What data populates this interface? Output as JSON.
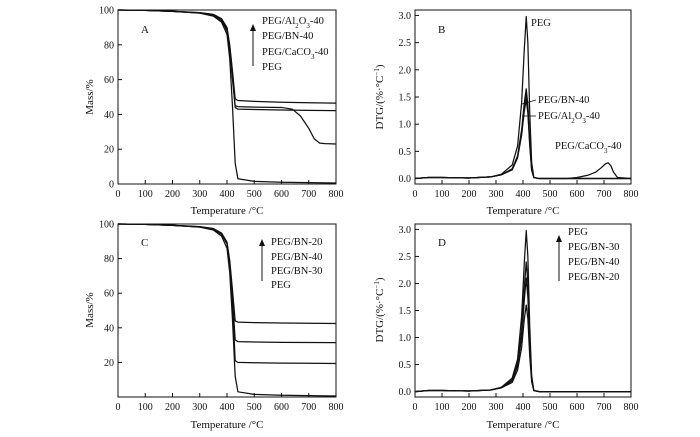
{
  "figure_colors": {
    "line": "#111111",
    "background": "#ffffff"
  },
  "chart_data": [
    {
      "id": "A",
      "type": "line",
      "panel_label": "A",
      "xlabel": "Temperature /°C",
      "ylabel": "Mass/%",
      "xlim": [
        0,
        800
      ],
      "ylim": [
        0,
        100
      ],
      "xticks": [
        "0",
        "100",
        "200",
        "300",
        "400",
        "500",
        "600",
        "700",
        "800"
      ],
      "yticks": [
        "0",
        "20",
        "40",
        "60",
        "80",
        "100"
      ],
      "legend": {
        "order": [
          "PEG/Al2O3-40",
          "PEG/BN-40",
          "PEG/CaCO3-40",
          "PEG"
        ],
        "position": "top-right",
        "arrow": "up"
      },
      "series": [
        {
          "name": "PEG/Al2O3-40",
          "x": [
            0,
            100,
            200,
            300,
            350,
            380,
            400,
            410,
            420,
            430,
            440,
            500,
            600,
            700,
            800
          ],
          "y": [
            100,
            99.8,
            99.3,
            98.5,
            97.5,
            95,
            90,
            80,
            65,
            49,
            48,
            47.5,
            47,
            46.7,
            46.5
          ]
        },
        {
          "name": "PEG/BN-40",
          "x": [
            0,
            100,
            200,
            300,
            350,
            380,
            400,
            410,
            420,
            430,
            440,
            500,
            600,
            700,
            800
          ],
          "y": [
            100,
            99.8,
            99.2,
            98.4,
            97.3,
            94.5,
            89,
            79,
            64,
            44,
            43,
            42.8,
            42.5,
            42.3,
            42.2
          ]
        },
        {
          "name": "PEG/CaCO3-40",
          "x": [
            0,
            100,
            200,
            300,
            350,
            380,
            400,
            410,
            420,
            430,
            440,
            500,
            600,
            640,
            670,
            700,
            720,
            740,
            760,
            800
          ],
          "y": [
            100,
            99.8,
            99.2,
            98.3,
            97,
            94,
            88,
            77,
            60,
            45,
            44.5,
            44.2,
            44,
            43,
            39,
            32,
            26,
            23.5,
            23.2,
            23
          ]
        },
        {
          "name": "PEG",
          "x": [
            0,
            100,
            200,
            300,
            350,
            380,
            400,
            410,
            420,
            430,
            440,
            500,
            600,
            700,
            800
          ],
          "y": [
            100,
            99.8,
            99.2,
            98.2,
            96.5,
            93,
            86,
            72,
            45,
            12,
            3,
            1.5,
            1,
            0.8,
            0.6
          ]
        }
      ]
    },
    {
      "id": "B",
      "type": "line",
      "panel_label": "B",
      "xlabel": "Temperature /°C",
      "ylabel": "DTG/(%·°C⁻¹)",
      "xlim": [
        0,
        800
      ],
      "ylim": [
        -0.1,
        3.1
      ],
      "xticks": [
        "0",
        "100",
        "200",
        "300",
        "400",
        "500",
        "600",
        "700",
        "800"
      ],
      "yticks": [
        "0.0",
        "0.5",
        "1.0",
        "1.5",
        "2.0",
        "2.5",
        "3.0"
      ],
      "annotations": [
        "PEG",
        "PEG/BN-40",
        "PEG/Al2O3-40",
        "PEG/CaCO3-40"
      ],
      "series": [
        {
          "name": "PEG",
          "x": [
            0,
            50,
            100,
            200,
            280,
            320,
            360,
            380,
            395,
            405,
            412,
            418,
            425,
            432,
            440,
            460,
            600,
            800
          ],
          "y": [
            0.0,
            0.02,
            0.02,
            0.01,
            0.03,
            0.08,
            0.25,
            0.6,
            1.4,
            2.4,
            2.98,
            2.5,
            1.2,
            0.3,
            0.02,
            0.0,
            0.0,
            0.0
          ]
        },
        {
          "name": "PEG/BN-40",
          "x": [
            0,
            50,
            100,
            200,
            280,
            320,
            360,
            380,
            395,
            405,
            412,
            418,
            425,
            432,
            440,
            460,
            600,
            800
          ],
          "y": [
            0.0,
            0.02,
            0.02,
            0.01,
            0.03,
            0.07,
            0.18,
            0.42,
            0.9,
            1.4,
            1.65,
            1.35,
            0.7,
            0.2,
            0.02,
            0.0,
            0.0,
            0.0
          ]
        },
        {
          "name": "PEG/Al2O3-40",
          "x": [
            0,
            50,
            100,
            200,
            280,
            320,
            360,
            380,
            395,
            405,
            412,
            418,
            425,
            432,
            440,
            460,
            600,
            800
          ],
          "y": [
            0.0,
            0.02,
            0.02,
            0.01,
            0.03,
            0.07,
            0.17,
            0.4,
            0.85,
            1.3,
            1.55,
            1.3,
            0.65,
            0.18,
            0.02,
            0.0,
            0.0,
            0.0
          ]
        },
        {
          "name": "PEG/CaCO3-40",
          "x": [
            0,
            50,
            100,
            200,
            280,
            320,
            360,
            380,
            395,
            405,
            412,
            418,
            425,
            432,
            440,
            460,
            560,
            600,
            640,
            670,
            690,
            705,
            715,
            725,
            735,
            750,
            800
          ],
          "y": [
            0.0,
            0.02,
            0.02,
            0.01,
            0.03,
            0.07,
            0.16,
            0.38,
            0.8,
            1.25,
            1.45,
            1.2,
            0.6,
            0.15,
            0.02,
            0.0,
            0.0,
            0.02,
            0.06,
            0.12,
            0.2,
            0.27,
            0.29,
            0.24,
            0.12,
            0.02,
            0.0
          ]
        }
      ]
    },
    {
      "id": "C",
      "type": "line",
      "panel_label": "C",
      "xlabel": "Temperature /°C",
      "ylabel": "Mass/%",
      "xlim": [
        0,
        800
      ],
      "ylim": [
        0,
        100
      ],
      "xticks": [
        "0",
        "100",
        "200",
        "300",
        "400",
        "500",
        "600",
        "700",
        "800"
      ],
      "yticks": [
        "20",
        "40",
        "60",
        "80",
        "100"
      ],
      "legend": {
        "order": [
          "PEG/BN-20",
          "PEG/BN-40",
          "PEG/BN-30",
          "PEG"
        ],
        "position": "top-right",
        "arrow": "up"
      },
      "series": [
        {
          "name": "PEG/BN-40",
          "x": [
            0,
            100,
            200,
            300,
            350,
            380,
            400,
            410,
            420,
            430,
            440,
            500,
            600,
            700,
            800
          ],
          "y": [
            100,
            99.8,
            99.3,
            98.5,
            97.4,
            94.8,
            89.5,
            79,
            62,
            44,
            43.3,
            43,
            42.8,
            42.6,
            42.5
          ]
        },
        {
          "name": "PEG/BN-30",
          "x": [
            0,
            100,
            200,
            300,
            350,
            380,
            400,
            410,
            420,
            430,
            440,
            500,
            600,
            700,
            800
          ],
          "y": [
            100,
            99.8,
            99.2,
            98.4,
            97.2,
            94.4,
            89,
            78,
            58,
            33,
            32,
            31.8,
            31.6,
            31.5,
            31.4
          ]
        },
        {
          "name": "PEG/BN-20",
          "x": [
            0,
            100,
            200,
            300,
            350,
            380,
            400,
            410,
            420,
            430,
            440,
            500,
            600,
            700,
            800
          ],
          "y": [
            100,
            99.8,
            99.2,
            98.3,
            97,
            94,
            88.5,
            77,
            55,
            21,
            20,
            19.8,
            19.6,
            19.5,
            19.4
          ]
        },
        {
          "name": "PEG",
          "x": [
            0,
            100,
            200,
            300,
            350,
            380,
            400,
            410,
            420,
            430,
            440,
            500,
            600,
            700,
            800
          ],
          "y": [
            100,
            99.8,
            99.2,
            98.2,
            96.5,
            93,
            86,
            72,
            45,
            12,
            3,
            1.5,
            1,
            0.8,
            0.6
          ]
        }
      ]
    },
    {
      "id": "D",
      "type": "line",
      "panel_label": "D",
      "xlabel": "Temperature /°C",
      "ylabel": "DTG/(%·°C⁻¹)",
      "xlim": [
        0,
        800
      ],
      "ylim": [
        -0.1,
        3.1
      ],
      "xticks": [
        "0",
        "100",
        "200",
        "300",
        "400",
        "500",
        "600",
        "700",
        "800"
      ],
      "yticks": [
        "0.0",
        "0.5",
        "1.0",
        "1.5",
        "2.0",
        "2.5",
        "3.0"
      ],
      "legend": {
        "order": [
          "PEG",
          "PEG/BN-30",
          "PEG/BN-40",
          "PEG/BN-20"
        ],
        "position": "top-right",
        "arrow": "up"
      },
      "series": [
        {
          "name": "PEG",
          "x": [
            0,
            50,
            100,
            200,
            280,
            320,
            360,
            380,
            395,
            405,
            412,
            418,
            425,
            432,
            440,
            460,
            600,
            800
          ],
          "y": [
            0.0,
            0.02,
            0.02,
            0.01,
            0.03,
            0.08,
            0.25,
            0.6,
            1.4,
            2.4,
            2.98,
            2.5,
            1.2,
            0.3,
            0.02,
            0.0,
            0.0,
            0.0
          ]
        },
        {
          "name": "PEG/BN-30",
          "x": [
            0,
            50,
            100,
            200,
            280,
            320,
            360,
            380,
            395,
            405,
            412,
            418,
            425,
            432,
            440,
            460,
            600,
            800
          ],
          "y": [
            0.0,
            0.02,
            0.02,
            0.01,
            0.03,
            0.07,
            0.22,
            0.52,
            1.15,
            1.95,
            2.4,
            2.0,
            0.95,
            0.25,
            0.02,
            0.0,
            0.0,
            0.0
          ]
        },
        {
          "name": "PEG/BN-40",
          "x": [
            0,
            50,
            100,
            200,
            280,
            320,
            360,
            380,
            395,
            405,
            412,
            418,
            425,
            432,
            440,
            460,
            600,
            800
          ],
          "y": [
            0.0,
            0.02,
            0.02,
            0.01,
            0.03,
            0.07,
            0.2,
            0.48,
            1.0,
            1.7,
            2.1,
            1.75,
            0.85,
            0.22,
            0.02,
            0.0,
            0.0,
            0.0
          ]
        },
        {
          "name": "PEG/BN-20",
          "x": [
            0,
            50,
            100,
            200,
            280,
            320,
            360,
            380,
            395,
            405,
            412,
            418,
            425,
            432,
            440,
            460,
            600,
            800
          ],
          "y": [
            0.0,
            0.02,
            0.02,
            0.01,
            0.03,
            0.07,
            0.17,
            0.4,
            0.82,
            1.35,
            1.6,
            1.35,
            0.65,
            0.18,
            0.02,
            0.0,
            0.0,
            0.0
          ]
        }
      ]
    }
  ]
}
